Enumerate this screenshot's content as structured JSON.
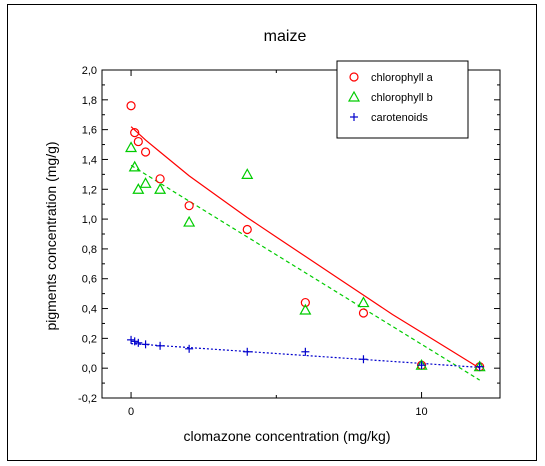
{
  "chart_data": {
    "type": "scatter",
    "title": "maize",
    "xlabel": "clomazone concentration (mg/kg)",
    "ylabel": "pigments concentration (mg/g)",
    "xlim": [
      -1,
      12.7
    ],
    "ylim": [
      -0.2,
      2.0
    ],
    "x_ticks": [
      {
        "v": 0,
        "label": "0"
      },
      {
        "v": 10,
        "label": "10"
      }
    ],
    "y_ticks": [
      {
        "v": -0.2,
        "label": "-0,2"
      },
      {
        "v": 0.0,
        "label": "0,0"
      },
      {
        "v": 0.2,
        "label": "0,2"
      },
      {
        "v": 0.4,
        "label": "0,4"
      },
      {
        "v": 0.6,
        "label": "0,6"
      },
      {
        "v": 0.8,
        "label": "0,8"
      },
      {
        "v": 1.0,
        "label": "1,0"
      },
      {
        "v": 1.2,
        "label": "1,2"
      },
      {
        "v": 1.4,
        "label": "1,4"
      },
      {
        "v": 1.6,
        "label": "1,6"
      },
      {
        "v": 1.8,
        "label": "1,8"
      },
      {
        "v": 2.0,
        "label": "2,0"
      }
    ],
    "grid": false,
    "legend_position": "top-right",
    "series": [
      {
        "name": "chlorophyll a",
        "marker": "circle",
        "color": "#ff0000",
        "x": [
          0,
          0.125,
          0.25,
          0.5,
          1,
          2,
          4,
          6,
          8,
          10,
          12
        ],
        "y": [
          1.76,
          1.58,
          1.52,
          1.45,
          1.27,
          1.09,
          0.93,
          0.44,
          0.37,
          0.02,
          0.01
        ],
        "fit": {
          "style": "solid",
          "x": [
            0,
            0.5,
            1,
            2,
            3,
            4,
            5,
            6,
            7,
            8,
            9,
            10,
            11,
            12
          ],
          "y": [
            1.62,
            1.53,
            1.45,
            1.29,
            1.15,
            1.01,
            0.88,
            0.75,
            0.62,
            0.49,
            0.36,
            0.24,
            0.12,
            0.0
          ]
        }
      },
      {
        "name": "chlorophyll b",
        "marker": "triangle",
        "color": "#00cc00",
        "x": [
          0,
          0.125,
          0.25,
          0.5,
          1,
          2,
          4,
          6,
          8,
          10,
          12
        ],
        "y": [
          1.48,
          1.35,
          1.2,
          1.24,
          1.2,
          0.98,
          1.3,
          0.39,
          0.44,
          0.02,
          0.01
        ],
        "fit": {
          "style": "dashed",
          "x": [
            0,
            12
          ],
          "y": [
            1.36,
            -0.08
          ]
        }
      },
      {
        "name": "carotenoids",
        "marker": "plus",
        "color": "#0000cc",
        "x": [
          0,
          0.125,
          0.25,
          0.5,
          1,
          2,
          4,
          6,
          8,
          10,
          12
        ],
        "y": [
          0.19,
          0.18,
          0.17,
          0.16,
          0.15,
          0.13,
          0.11,
          0.11,
          0.06,
          0.02,
          0.01
        ],
        "fit": {
          "style": "dotted",
          "x": [
            0,
            12
          ],
          "y": [
            0.165,
            0.005
          ]
        }
      }
    ]
  }
}
